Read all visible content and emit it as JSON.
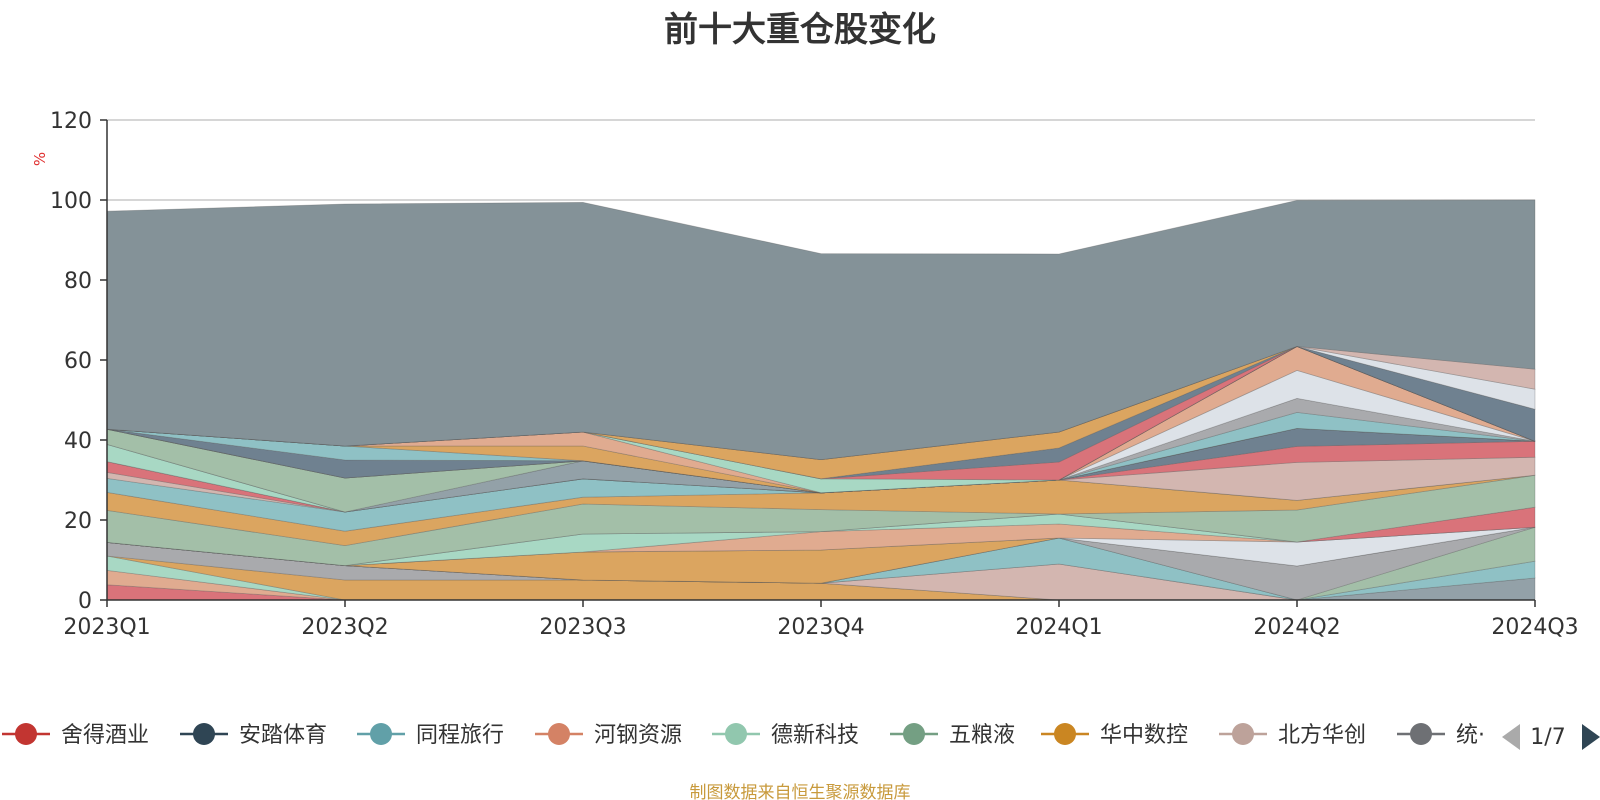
{
  "title": "前十大重仓股变化",
  "unit": "%",
  "source": "制图数据来自恒生聚源数据库",
  "legend": {
    "items": [
      {
        "label": "舍得酒业",
        "color": "#c23531"
      },
      {
        "label": "安踏体育",
        "color": "#2f4554"
      },
      {
        "label": "同程旅行",
        "color": "#61a0a8"
      },
      {
        "label": "河钢资源",
        "color": "#d48265"
      },
      {
        "label": "德新科技",
        "color": "#91c7ae"
      },
      {
        "label": "五粮液",
        "color": "#749f83"
      },
      {
        "label": "华中数控",
        "color": "#ca8622"
      },
      {
        "label": "北方华创",
        "color": "#bda29a"
      },
      {
        "label": "统·",
        "color": "#6e7074"
      }
    ],
    "page": "1/7"
  },
  "chart_data": {
    "type": "area",
    "stacked": true,
    "categories": [
      "2023Q1",
      "2023Q2",
      "2023Q3",
      "2023Q4",
      "2024Q1",
      "2024Q2",
      "2024Q3"
    ],
    "ylim": [
      0,
      120
    ],
    "yticks": [
      0,
      20,
      40,
      60,
      80,
      100,
      120
    ],
    "ylabel": "%",
    "grid": true,
    "series": [
      {
        "color": "#d9737a",
        "values": [
          3.8,
          0,
          0,
          0,
          0,
          0,
          0
        ]
      },
      {
        "color": "#e0ab90",
        "values": [
          3.6,
          0,
          0,
          0,
          0,
          0,
          0
        ]
      },
      {
        "color": "#a8d8c4",
        "values": [
          3.6,
          0,
          0,
          0,
          0,
          0,
          0
        ]
      },
      {
        "color": "#dba560",
        "values": [
          0,
          5,
          5,
          4.2,
          0,
          0,
          0
        ]
      },
      {
        "color": "#a9aaad",
        "values": [
          3.4,
          3.6,
          0,
          0,
          0,
          0,
          0
        ]
      },
      {
        "color": "#d3b6b0",
        "values": [
          0,
          0,
          0,
          0,
          9,
          0,
          0
        ]
      },
      {
        "color": "#93a1a8",
        "values": [
          0,
          0,
          0,
          0,
          0,
          0,
          5.5
        ]
      },
      {
        "color": "#8fc1c5",
        "values": [
          0,
          0,
          0,
          0,
          6.5,
          0,
          4.2
        ]
      },
      {
        "color": "#a3bfa8",
        "values": [
          0,
          0,
          0,
          0,
          0,
          0,
          8.5
        ]
      },
      {
        "color": "#a9aaad",
        "values": [
          0,
          0,
          0,
          0,
          0,
          8.5,
          0
        ]
      },
      {
        "color": "#dba560",
        "values": [
          0,
          0,
          7,
          8.3,
          0,
          0,
          0
        ]
      },
      {
        "color": "#dde2e8",
        "values": [
          0,
          0,
          0,
          0,
          0,
          6,
          0
        ]
      },
      {
        "color": "#e0ab90",
        "values": [
          0,
          0,
          0,
          4.6,
          3.5,
          0,
          0
        ]
      },
      {
        "color": "#a8d8c4",
        "values": [
          0,
          0,
          4.5,
          0,
          2.5,
          0,
          0
        ]
      },
      {
        "color": "#d9737a",
        "values": [
          0,
          0,
          0,
          0,
          0,
          0,
          5
        ]
      },
      {
        "color": "#a3bfa8",
        "values": [
          8,
          5,
          7.5,
          5.5,
          0,
          8,
          8
        ]
      },
      {
        "color": "#dba560",
        "values": [
          4.5,
          3.6,
          1.7,
          4.2,
          8.5,
          2.4,
          0
        ]
      },
      {
        "color": "#8fc1c5",
        "values": [
          3.5,
          4.8,
          4.6,
          0,
          0,
          0,
          0
        ]
      },
      {
        "color": "#d3b6b0",
        "values": [
          1.5,
          0,
          0,
          0,
          0,
          9.5,
          4.5
        ]
      },
      {
        "color": "#d9737a",
        "values": [
          2.7,
          0,
          0,
          0,
          0,
          4,
          4
        ]
      },
      {
        "color": "#6f8190",
        "values": [
          0,
          0,
          0,
          0,
          0,
          4.5,
          0
        ]
      },
      {
        "color": "#a8d8c4",
        "values": [
          4.3,
          0,
          0,
          0,
          0,
          0,
          0
        ]
      },
      {
        "color": "#93a1a8",
        "values": [
          0,
          0,
          4.5,
          0,
          0,
          0,
          0
        ]
      },
      {
        "color": "#a3bfa8",
        "values": [
          3.8,
          8.5,
          0,
          0,
          0,
          0,
          0
        ]
      },
      {
        "color": "#8fc1c5",
        "values": [
          0,
          0,
          0,
          0,
          0,
          4,
          0
        ]
      },
      {
        "color": "#a9aaad",
        "values": [
          0,
          0,
          0,
          0,
          0,
          3.5,
          0
        ]
      },
      {
        "color": "#dde2e8",
        "values": [
          0,
          0,
          0,
          0,
          0,
          7,
          0
        ]
      },
      {
        "color": "#e0ab90",
        "values": [
          0,
          0,
          0,
          0,
          0,
          6,
          0
        ]
      },
      {
        "color": "#6f8190",
        "values": [
          0,
          4.5,
          0,
          0,
          0,
          0,
          0
        ]
      },
      {
        "color": "#8fc1c5",
        "values": [
          0,
          3.5,
          0,
          0,
          0,
          0,
          0
        ]
      },
      {
        "color": "#dba560",
        "values": [
          0,
          0,
          3.7,
          0,
          0,
          0,
          0
        ]
      },
      {
        "color": "#e0ab90",
        "values": [
          0,
          0,
          3.5,
          0,
          0,
          0,
          0
        ]
      },
      {
        "color": "#a8d8c4",
        "values": [
          0,
          0,
          0,
          3.5,
          0,
          0,
          0
        ]
      },
      {
        "color": "#d9737a",
        "values": [
          0,
          0,
          0,
          0,
          4.5,
          0,
          0
        ]
      },
      {
        "color": "#6f8190",
        "values": [
          0,
          0,
          0,
          0,
          3.5,
          0,
          0
        ]
      },
      {
        "color": "#dba560",
        "values": [
          0,
          0,
          0,
          4.8,
          4,
          0,
          0
        ]
      },
      {
        "color": "#6f8190",
        "values": [
          0,
          0,
          0,
          0,
          0,
          0,
          8
        ]
      },
      {
        "color": "#dde2e8",
        "values": [
          0,
          0,
          0,
          0,
          0,
          0,
          5
        ]
      },
      {
        "color": "#d3b6b0",
        "values": [
          0,
          0,
          0,
          0,
          0,
          0,
          5
        ]
      },
      {
        "color": "#849298",
        "values": [
          54.5,
          60.5,
          57.4,
          51.5,
          44.5,
          36.5,
          42.3
        ]
      }
    ]
  }
}
